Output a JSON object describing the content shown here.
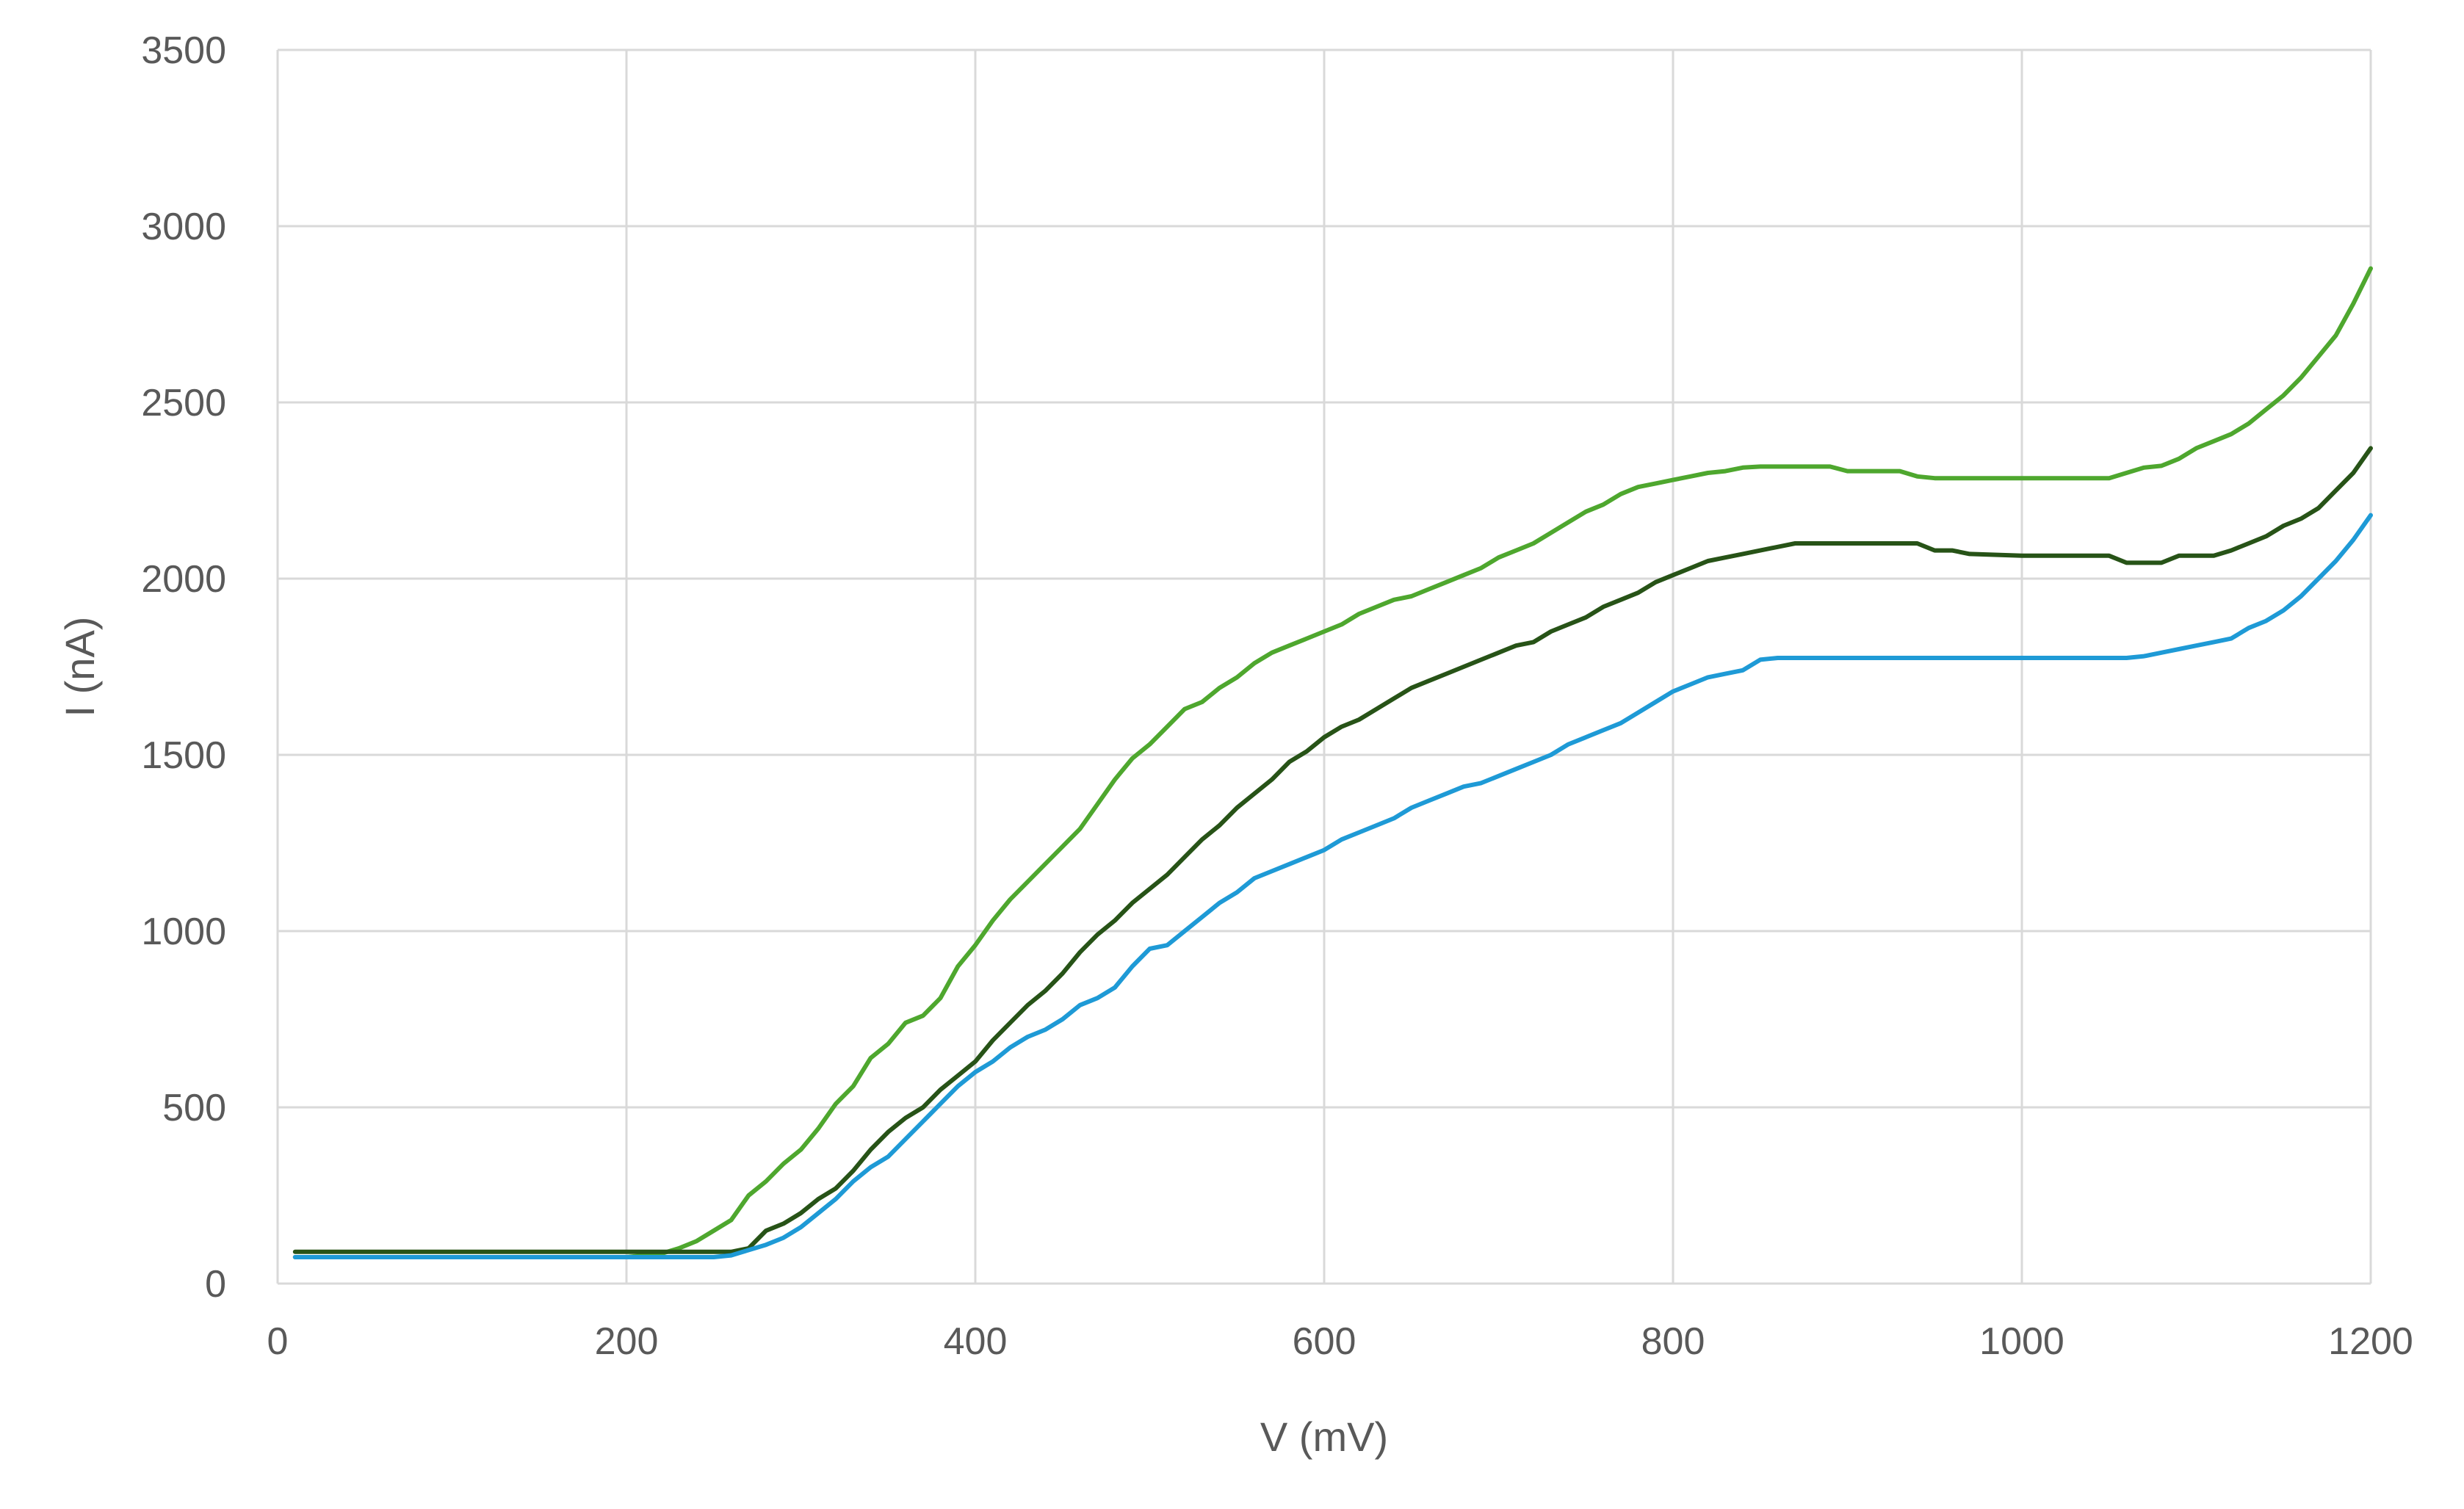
{
  "chart_data": {
    "type": "line",
    "title": "",
    "xlabel": "V (mV)",
    "ylabel": "I (nA)",
    "xlim": [
      0,
      1200
    ],
    "ylim": [
      0,
      3500
    ],
    "xticks": [
      0,
      200,
      400,
      600,
      800,
      1000,
      1200
    ],
    "yticks": [
      0,
      500,
      1000,
      1500,
      2000,
      2500,
      3000,
      3500
    ],
    "grid": true,
    "legend": "none",
    "series": [
      {
        "color": "#4ea72e",
        "points": [
          [
            10,
            75
          ],
          [
            100,
            75
          ],
          [
            200,
            75
          ],
          [
            220,
            85
          ],
          [
            230,
            100
          ],
          [
            240,
            120
          ],
          [
            250,
            150
          ],
          [
            260,
            180
          ],
          [
            270,
            250
          ],
          [
            280,
            290
          ],
          [
            290,
            340
          ],
          [
            300,
            380
          ],
          [
            310,
            440
          ],
          [
            320,
            510
          ],
          [
            330,
            560
          ],
          [
            340,
            640
          ],
          [
            350,
            680
          ],
          [
            360,
            740
          ],
          [
            370,
            760
          ],
          [
            380,
            810
          ],
          [
            390,
            900
          ],
          [
            400,
            960
          ],
          [
            410,
            1030
          ],
          [
            420,
            1090
          ],
          [
            430,
            1140
          ],
          [
            440,
            1190
          ],
          [
            450,
            1240
          ],
          [
            460,
            1290
          ],
          [
            470,
            1360
          ],
          [
            480,
            1430
          ],
          [
            490,
            1490
          ],
          [
            500,
            1530
          ],
          [
            510,
            1580
          ],
          [
            520,
            1630
          ],
          [
            530,
            1650
          ],
          [
            540,
            1690
          ],
          [
            550,
            1720
          ],
          [
            560,
            1760
          ],
          [
            570,
            1790
          ],
          [
            580,
            1810
          ],
          [
            590,
            1830
          ],
          [
            600,
            1850
          ],
          [
            610,
            1870
          ],
          [
            620,
            1900
          ],
          [
            630,
            1920
          ],
          [
            640,
            1940
          ],
          [
            650,
            1950
          ],
          [
            660,
            1970
          ],
          [
            670,
            1990
          ],
          [
            680,
            2010
          ],
          [
            690,
            2030
          ],
          [
            700,
            2060
          ],
          [
            710,
            2080
          ],
          [
            720,
            2100
          ],
          [
            730,
            2130
          ],
          [
            740,
            2160
          ],
          [
            750,
            2190
          ],
          [
            760,
            2210
          ],
          [
            770,
            2240
          ],
          [
            780,
            2260
          ],
          [
            790,
            2270
          ],
          [
            800,
            2280
          ],
          [
            810,
            2290
          ],
          [
            820,
            2300
          ],
          [
            830,
            2305
          ],
          [
            840,
            2315
          ],
          [
            850,
            2318
          ],
          [
            870,
            2318
          ],
          [
            890,
            2318
          ],
          [
            900,
            2305
          ],
          [
            930,
            2305
          ],
          [
            940,
            2290
          ],
          [
            950,
            2285
          ],
          [
            1000,
            2285
          ],
          [
            1050,
            2285
          ],
          [
            1060,
            2300
          ],
          [
            1070,
            2315
          ],
          [
            1080,
            2320
          ],
          [
            1090,
            2340
          ],
          [
            1100,
            2370
          ],
          [
            1110,
            2390
          ],
          [
            1120,
            2410
          ],
          [
            1130,
            2440
          ],
          [
            1140,
            2480
          ],
          [
            1150,
            2520
          ],
          [
            1160,
            2570
          ],
          [
            1170,
            2630
          ],
          [
            1180,
            2690
          ],
          [
            1190,
            2780
          ],
          [
            1200,
            2880
          ]
        ]
      },
      {
        "color": "#275317",
        "points": [
          [
            10,
            90
          ],
          [
            100,
            90
          ],
          [
            200,
            90
          ],
          [
            250,
            90
          ],
          [
            260,
            90
          ],
          [
            270,
            100
          ],
          [
            280,
            150
          ],
          [
            290,
            170
          ],
          [
            300,
            200
          ],
          [
            310,
            240
          ],
          [
            320,
            270
          ],
          [
            330,
            320
          ],
          [
            340,
            380
          ],
          [
            350,
            430
          ],
          [
            360,
            470
          ],
          [
            370,
            500
          ],
          [
            380,
            550
          ],
          [
            390,
            590
          ],
          [
            400,
            630
          ],
          [
            410,
            690
          ],
          [
            420,
            740
          ],
          [
            430,
            790
          ],
          [
            440,
            830
          ],
          [
            450,
            880
          ],
          [
            460,
            940
          ],
          [
            470,
            990
          ],
          [
            480,
            1030
          ],
          [
            490,
            1080
          ],
          [
            500,
            1120
          ],
          [
            510,
            1160
          ],
          [
            520,
            1210
          ],
          [
            530,
            1260
          ],
          [
            540,
            1300
          ],
          [
            550,
            1350
          ],
          [
            560,
            1390
          ],
          [
            570,
            1430
          ],
          [
            580,
            1480
          ],
          [
            590,
            1510
          ],
          [
            600,
            1550
          ],
          [
            610,
            1580
          ],
          [
            620,
            1600
          ],
          [
            630,
            1630
          ],
          [
            640,
            1660
          ],
          [
            650,
            1690
          ],
          [
            660,
            1710
          ],
          [
            670,
            1730
          ],
          [
            680,
            1750
          ],
          [
            690,
            1770
          ],
          [
            700,
            1790
          ],
          [
            710,
            1810
          ],
          [
            720,
            1820
          ],
          [
            730,
            1850
          ],
          [
            740,
            1870
          ],
          [
            750,
            1890
          ],
          [
            760,
            1920
          ],
          [
            770,
            1940
          ],
          [
            780,
            1960
          ],
          [
            790,
            1990
          ],
          [
            800,
            2010
          ],
          [
            810,
            2030
          ],
          [
            820,
            2050
          ],
          [
            830,
            2060
          ],
          [
            840,
            2070
          ],
          [
            850,
            2080
          ],
          [
            860,
            2090
          ],
          [
            870,
            2100
          ],
          [
            900,
            2100
          ],
          [
            940,
            2100
          ],
          [
            950,
            2080
          ],
          [
            960,
            2080
          ],
          [
            970,
            2070
          ],
          [
            1000,
            2065
          ],
          [
            1050,
            2065
          ],
          [
            1060,
            2045
          ],
          [
            1080,
            2045
          ],
          [
            1090,
            2065
          ],
          [
            1110,
            2065
          ],
          [
            1120,
            2080
          ],
          [
            1130,
            2100
          ],
          [
            1140,
            2120
          ],
          [
            1150,
            2150
          ],
          [
            1160,
            2170
          ],
          [
            1170,
            2200
          ],
          [
            1180,
            2250
          ],
          [
            1190,
            2300
          ],
          [
            1200,
            2370
          ]
        ]
      },
      {
        "color": "#1e9ad6",
        "points": [
          [
            10,
            75
          ],
          [
            100,
            75
          ],
          [
            200,
            75
          ],
          [
            250,
            75
          ],
          [
            260,
            80
          ],
          [
            270,
            95
          ],
          [
            280,
            110
          ],
          [
            290,
            130
          ],
          [
            300,
            160
          ],
          [
            310,
            200
          ],
          [
            320,
            240
          ],
          [
            330,
            290
          ],
          [
            340,
            330
          ],
          [
            350,
            360
          ],
          [
            360,
            410
          ],
          [
            370,
            460
          ],
          [
            380,
            510
          ],
          [
            390,
            560
          ],
          [
            400,
            600
          ],
          [
            410,
            630
          ],
          [
            420,
            670
          ],
          [
            430,
            700
          ],
          [
            440,
            720
          ],
          [
            450,
            750
          ],
          [
            460,
            790
          ],
          [
            470,
            810
          ],
          [
            480,
            840
          ],
          [
            490,
            900
          ],
          [
            500,
            950
          ],
          [
            510,
            960
          ],
          [
            520,
            1000
          ],
          [
            530,
            1040
          ],
          [
            540,
            1080
          ],
          [
            550,
            1110
          ],
          [
            560,
            1150
          ],
          [
            570,
            1170
          ],
          [
            580,
            1190
          ],
          [
            590,
            1210
          ],
          [
            600,
            1230
          ],
          [
            610,
            1260
          ],
          [
            620,
            1280
          ],
          [
            630,
            1300
          ],
          [
            640,
            1320
          ],
          [
            650,
            1350
          ],
          [
            660,
            1370
          ],
          [
            670,
            1390
          ],
          [
            680,
            1410
          ],
          [
            690,
            1420
          ],
          [
            700,
            1440
          ],
          [
            710,
            1460
          ],
          [
            720,
            1480
          ],
          [
            730,
            1500
          ],
          [
            740,
            1530
          ],
          [
            750,
            1550
          ],
          [
            760,
            1570
          ],
          [
            770,
            1590
          ],
          [
            780,
            1620
          ],
          [
            790,
            1650
          ],
          [
            800,
            1680
          ],
          [
            810,
            1700
          ],
          [
            820,
            1720
          ],
          [
            830,
            1730
          ],
          [
            840,
            1740
          ],
          [
            850,
            1770
          ],
          [
            860,
            1775
          ],
          [
            900,
            1775
          ],
          [
            1000,
            1775
          ],
          [
            1060,
            1775
          ],
          [
            1070,
            1780
          ],
          [
            1080,
            1790
          ],
          [
            1090,
            1800
          ],
          [
            1100,
            1810
          ],
          [
            1110,
            1820
          ],
          [
            1120,
            1830
          ],
          [
            1130,
            1860
          ],
          [
            1140,
            1880
          ],
          [
            1150,
            1910
          ],
          [
            1160,
            1950
          ],
          [
            1170,
            2000
          ],
          [
            1180,
            2050
          ],
          [
            1190,
            2110
          ],
          [
            1200,
            2180
          ]
        ]
      }
    ]
  }
}
